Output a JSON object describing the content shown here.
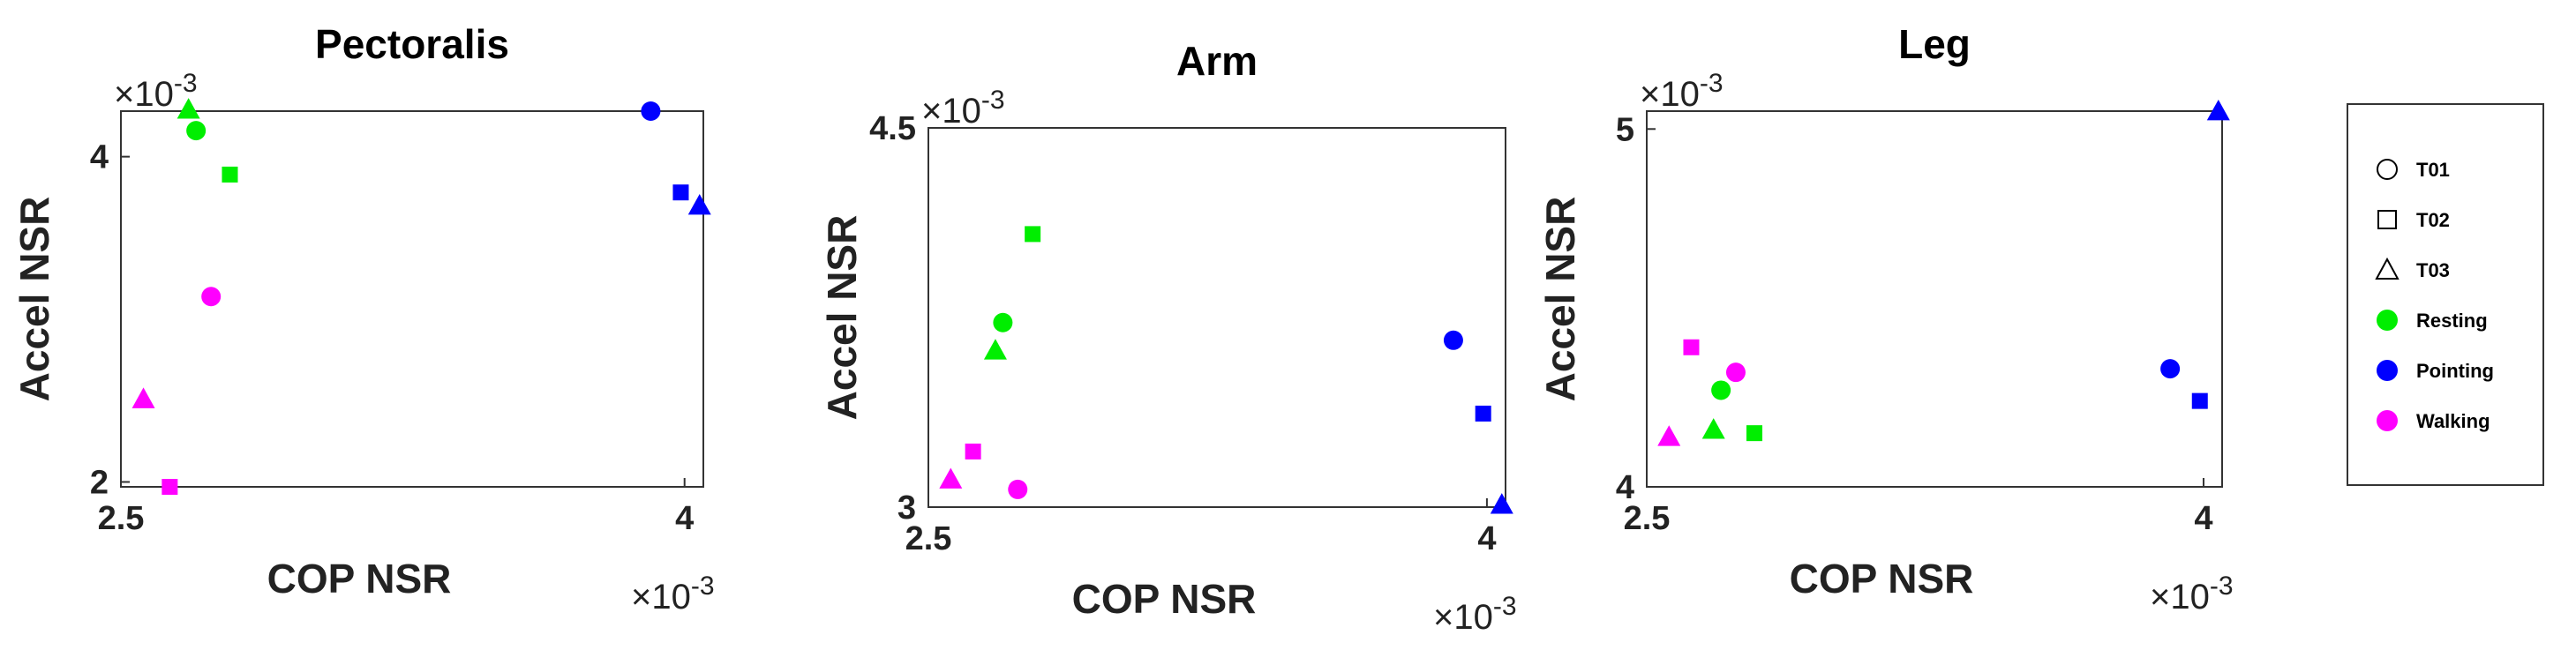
{
  "chart_data": [
    {
      "type": "scatter",
      "title": "Pectoralis",
      "xlabel": "COP NSR",
      "ylabel": "Accel NSR",
      "x_exponent_label": "×10",
      "x_exponent_power": "-3",
      "y_exponent_label": "×10",
      "y_exponent_power": "-3",
      "xlim": [
        2.5,
        4.05
      ],
      "ylim": [
        1.97,
        4.28
      ],
      "xticks": [
        {
          "value": 2.5,
          "label": "2.5"
        },
        {
          "value": 4,
          "label": "4"
        }
      ],
      "yticks": [
        {
          "value": 2,
          "label": "2"
        },
        {
          "value": 4,
          "label": "4"
        }
      ],
      "points": [
        {
          "x": 2.68,
          "y": 4.29,
          "trial": "T03",
          "condition": "Resting"
        },
        {
          "x": 2.7,
          "y": 4.16,
          "trial": "T01",
          "condition": "Resting"
        },
        {
          "x": 2.79,
          "y": 3.89,
          "trial": "T02",
          "condition": "Resting"
        },
        {
          "x": 3.91,
          "y": 4.28,
          "trial": "T01",
          "condition": "Pointing"
        },
        {
          "x": 3.99,
          "y": 3.78,
          "trial": "T02",
          "condition": "Pointing"
        },
        {
          "x": 4.04,
          "y": 3.7,
          "trial": "T03",
          "condition": "Pointing"
        },
        {
          "x": 2.74,
          "y": 3.14,
          "trial": "T01",
          "condition": "Walking"
        },
        {
          "x": 2.56,
          "y": 2.51,
          "trial": "T03",
          "condition": "Walking"
        },
        {
          "x": 2.63,
          "y": 1.97,
          "trial": "T02",
          "condition": "Walking"
        }
      ]
    },
    {
      "type": "scatter",
      "title": "Arm",
      "xlabel": "COP NSR",
      "ylabel": "Accel NSR",
      "x_exponent_label": "×10",
      "x_exponent_power": "-3",
      "y_exponent_label": "×10",
      "y_exponent_power": "-3",
      "xlim": [
        2.5,
        4.05
      ],
      "ylim": [
        3.0,
        4.5
      ],
      "xticks": [
        {
          "value": 2.5,
          "label": "2.5"
        },
        {
          "value": 4,
          "label": "4"
        }
      ],
      "yticks": [
        {
          "value": 3,
          "label": "3"
        },
        {
          "value": 4.5,
          "label": "4.5"
        }
      ],
      "points": [
        {
          "x": 2.7,
          "y": 3.73,
          "trial": "T01",
          "condition": "Resting"
        },
        {
          "x": 2.68,
          "y": 3.62,
          "trial": "T03",
          "condition": "Resting"
        },
        {
          "x": 2.78,
          "y": 4.08,
          "trial": "T02",
          "condition": "Resting"
        },
        {
          "x": 3.91,
          "y": 3.66,
          "trial": "T01",
          "condition": "Pointing"
        },
        {
          "x": 3.99,
          "y": 3.37,
          "trial": "T02",
          "condition": "Pointing"
        },
        {
          "x": 4.04,
          "y": 3.01,
          "trial": "T03",
          "condition": "Pointing"
        },
        {
          "x": 2.74,
          "y": 3.07,
          "trial": "T01",
          "condition": "Walking"
        },
        {
          "x": 2.62,
          "y": 3.22,
          "trial": "T02",
          "condition": "Walking"
        },
        {
          "x": 2.56,
          "y": 3.11,
          "trial": "T03",
          "condition": "Walking"
        }
      ]
    },
    {
      "type": "scatter",
      "title": "Leg",
      "xlabel": "COP NSR",
      "ylabel": "Accel NSR",
      "x_exponent_label": "×10",
      "x_exponent_power": "-3",
      "y_exponent_label": "×10",
      "y_exponent_power": "-3",
      "xlim": [
        2.5,
        4.05
      ],
      "ylim": [
        4.0,
        5.05
      ],
      "xticks": [
        {
          "value": 2.5,
          "label": "2.5"
        },
        {
          "value": 4,
          "label": "4"
        }
      ],
      "yticks": [
        {
          "value": 4,
          "label": "4"
        },
        {
          "value": 5,
          "label": "5"
        }
      ],
      "points": [
        {
          "x": 2.7,
          "y": 4.27,
          "trial": "T01",
          "condition": "Resting"
        },
        {
          "x": 2.68,
          "y": 4.16,
          "trial": "T03",
          "condition": "Resting"
        },
        {
          "x": 2.79,
          "y": 4.15,
          "trial": "T02",
          "condition": "Resting"
        },
        {
          "x": 3.91,
          "y": 4.33,
          "trial": "T01",
          "condition": "Pointing"
        },
        {
          "x": 3.99,
          "y": 4.24,
          "trial": "T02",
          "condition": "Pointing"
        },
        {
          "x": 4.04,
          "y": 5.05,
          "trial": "T03",
          "condition": "Pointing"
        },
        {
          "x": 2.62,
          "y": 4.39,
          "trial": "T02",
          "condition": "Walking"
        },
        {
          "x": 2.74,
          "y": 4.32,
          "trial": "T01",
          "condition": "Walking"
        },
        {
          "x": 2.56,
          "y": 4.14,
          "trial": "T03",
          "condition": "Walking"
        }
      ]
    }
  ],
  "legend": {
    "placement": "right",
    "shape_entries": [
      {
        "label": "T01",
        "marker": "circle"
      },
      {
        "label": "T02",
        "marker": "square"
      },
      {
        "label": "T03",
        "marker": "triangle"
      }
    ],
    "color_entries": [
      {
        "label": "Resting",
        "color": "#00ee00"
      },
      {
        "label": "Pointing",
        "color": "#0000ff"
      },
      {
        "label": "Walking",
        "color": "#ff00ff"
      }
    ]
  },
  "colors": {
    "Resting": "#00ee00",
    "Pointing": "#0000ff",
    "Walking": "#ff00ff"
  }
}
